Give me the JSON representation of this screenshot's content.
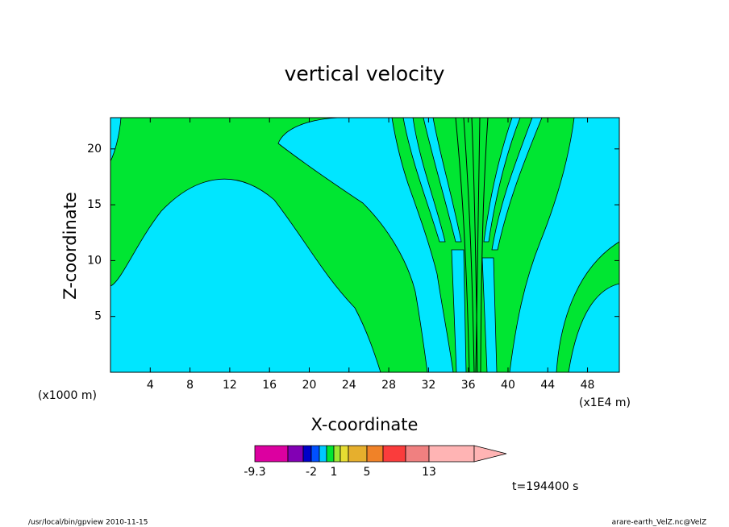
{
  "chart_data": {
    "type": "contour",
    "title": "vertical velocity",
    "x_label": "X-coordinate",
    "y_label": "Z-coordinate",
    "x_unit_left": "(x1000 m)",
    "x_unit_right": "(x1E4 m)",
    "xlim": [
      0,
      51.2
    ],
    "xticks": [
      4,
      8,
      12,
      16,
      20,
      24,
      28,
      32,
      36,
      40,
      44,
      48
    ],
    "ylim": [
      0,
      22.8
    ],
    "yticks": [
      5,
      10,
      15,
      20
    ],
    "field_colors": {
      "positive": "#00e632",
      "negative": "#00e6ff"
    },
    "colorbar": {
      "colors": [
        "#dc00a0",
        "#8200b4",
        "#0000c8",
        "#0050ff",
        "#00c8ff",
        "#00e632",
        "#a0e632",
        "#e6dc32",
        "#e6af2d",
        "#f08228",
        "#fa3c3c",
        "#f08080",
        "#ffb4b4"
      ],
      "labels": [
        -9.3,
        -2,
        1,
        5,
        13
      ]
    },
    "time_label": "t=194400 s",
    "footer_left": "/usr/local/bin/gpview  2010-11-15",
    "footer_right": "arare-earth_VelZ.nc@VelZ"
  }
}
